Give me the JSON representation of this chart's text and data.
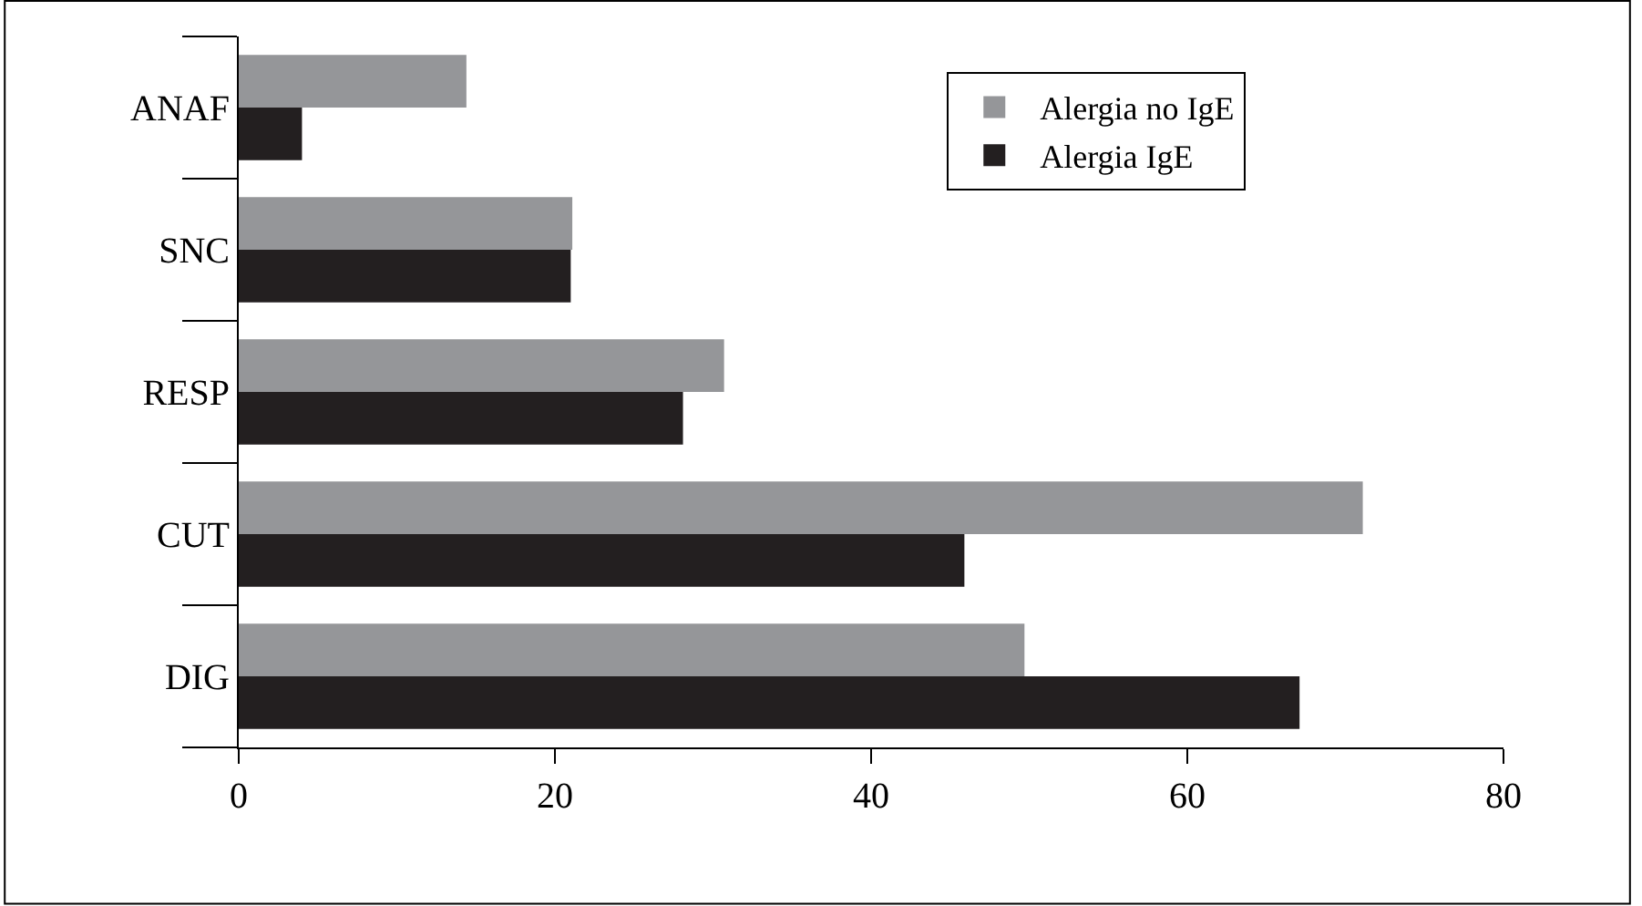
{
  "chart_data": {
    "type": "bar",
    "orientation": "horizontal",
    "categories": [
      "ANAF",
      "SNC",
      "RESP",
      "CUT",
      "DIG"
    ],
    "series": [
      {
        "name": "Alergia no IgE",
        "color": "#959699",
        "values": [
          14.4,
          21.1,
          30.7,
          71.1,
          49.7
        ]
      },
      {
        "name": "Alergia IgE",
        "color": "#231f20",
        "values": [
          4.0,
          21.0,
          28.1,
          45.9,
          67.1
        ]
      }
    ],
    "xlim": [
      0,
      80
    ],
    "xticks": [
      0,
      20,
      40,
      60,
      80
    ],
    "legend": "top right"
  }
}
